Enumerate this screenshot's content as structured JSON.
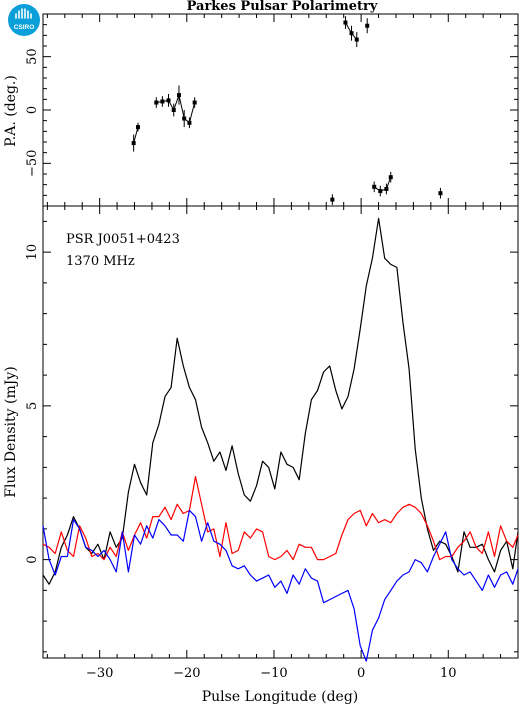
{
  "logo": {
    "text": "CSIRO",
    "icon": "csiro-logo-icon",
    "color": "#0a9fd8"
  },
  "chart_data": [
    {
      "type": "scatter",
      "title": "Parkes Pulsar Polarimetry",
      "ylabel": "P.A. (deg.)",
      "xlim": [
        -36.5,
        18
      ],
      "ylim": [
        -90,
        90
      ],
      "yticks": [
        -50,
        0,
        50
      ],
      "tick_labels_y": [
        "−50",
        "0",
        "50"
      ],
      "series": [
        {
          "points": [
            [
              -26.1,
              -31,
              8
            ],
            [
              -25.6,
              -16,
              4
            ],
            [
              -23.5,
              7,
              5
            ],
            [
              -22.8,
              8,
              5
            ],
            [
              -22.1,
              9,
              6
            ],
            [
              -21.5,
              0,
              6
            ],
            [
              -20.9,
              14,
              9
            ],
            [
              -20.3,
              -8,
              8
            ],
            [
              -19.7,
              -12,
              5
            ],
            [
              -19.1,
              7,
              5
            ],
            [
              -3.3,
              -84,
              5
            ],
            [
              -1.8,
              82,
              6
            ],
            [
              -1.1,
              72,
              7
            ],
            [
              -0.5,
              66,
              7
            ],
            [
              0.7,
              79,
              7
            ],
            [
              1.5,
              -72,
              5
            ],
            [
              2.2,
              -76,
              5
            ],
            [
              2.9,
              -74,
              5
            ],
            [
              3.4,
              -63,
              5
            ],
            [
              9.1,
              -78,
              5
            ]
          ]
        }
      ]
    },
    {
      "type": "line",
      "xlabel": "Pulse Longitude (deg)",
      "ylabel": "Flux Density (mJy)",
      "xlim": [
        -36.5,
        18
      ],
      "ylim": [
        -3.2,
        11.5
      ],
      "xticks": [
        -30,
        -20,
        -10,
        0,
        10
      ],
      "tick_labels_x": [
        "−30",
        "−20",
        "−10",
        "0",
        "10"
      ],
      "yticks": [
        0,
        5,
        10
      ],
      "tick_labels_y": [
        "0",
        "5",
        "10"
      ],
      "annotations": [
        "PSR J0051+0423",
        "1370 MHz"
      ],
      "series": [
        {
          "color": "#000000",
          "x": [
            -36.5,
            -35.8,
            -35.1,
            -34.4,
            -33.7,
            -33.0,
            -32.3,
            -31.6,
            -30.9,
            -30.2,
            -29.5,
            -28.8,
            -28.1,
            -27.4,
            -26.7,
            -26.0,
            -25.3,
            -24.6,
            -23.9,
            -23.2,
            -22.5,
            -21.8,
            -21.1,
            -20.4,
            -19.7,
            -19.0,
            -18.3,
            -17.6,
            -16.9,
            -16.2,
            -15.5,
            -14.8,
            -14.1,
            -13.4,
            -12.7,
            -12.0,
            -11.3,
            -10.6,
            -9.9,
            -9.2,
            -8.5,
            -7.8,
            -7.1,
            -6.4,
            -5.7,
            -5.0,
            -4.3,
            -3.6,
            -2.9,
            -2.2,
            -1.5,
            -0.8,
            -0.1,
            0.6,
            1.3,
            2.0,
            2.7,
            3.4,
            4.1,
            4.8,
            5.5,
            6.2,
            6.9,
            7.6,
            8.3,
            9.0,
            9.7,
            10.4,
            11.1,
            11.8,
            12.5,
            13.2,
            13.9,
            14.6,
            15.3,
            16.0,
            16.7,
            17.4,
            18.0
          ],
          "values": [
            -0.5,
            -0.8,
            -0.4,
            0.4,
            0.8,
            1.4,
            1.0,
            0.4,
            0.2,
            0.5,
            0.0,
            0.9,
            0.4,
            0.7,
            2.2,
            3.1,
            2.5,
            2.1,
            3.8,
            4.4,
            5.3,
            5.6,
            7.2,
            6.3,
            5.6,
            5.2,
            4.3,
            3.8,
            3.2,
            3.5,
            2.9,
            3.7,
            2.8,
            2.1,
            1.9,
            2.4,
            3.2,
            3.0,
            2.3,
            3.5,
            3.1,
            3.0,
            2.6,
            4.1,
            5.2,
            5.5,
            6.1,
            6.3,
            5.5,
            4.9,
            5.3,
            6.2,
            7.5,
            8.9,
            9.8,
            11.1,
            9.8,
            9.6,
            9.5,
            7.7,
            6.2,
            3.6,
            2.0,
            1.0,
            0.3,
            0.6,
            0.5,
            0.1,
            -0.4,
            0.9,
            0.4,
            0.4,
            0.5,
            0.0,
            -0.4,
            0.3,
            0.6,
            -0.3,
            0.9
          ]
        },
        {
          "color": "#ff0000",
          "x": [
            -36.5,
            -35.8,
            -35.1,
            -34.4,
            -33.7,
            -33.0,
            -32.3,
            -31.6,
            -30.9,
            -30.2,
            -29.5,
            -28.8,
            -28.1,
            -27.4,
            -26.7,
            -26.0,
            -25.3,
            -24.6,
            -23.9,
            -23.2,
            -22.5,
            -21.8,
            -21.1,
            -20.4,
            -19.7,
            -19.0,
            -18.3,
            -17.6,
            -16.9,
            -16.2,
            -15.5,
            -14.8,
            -14.1,
            -13.4,
            -12.7,
            -12.0,
            -11.3,
            -10.6,
            -9.9,
            -9.2,
            -8.5,
            -7.8,
            -7.1,
            -6.4,
            -5.7,
            -5.0,
            -4.3,
            -3.6,
            -2.9,
            -2.2,
            -1.5,
            -0.8,
            -0.1,
            0.6,
            1.3,
            2.0,
            2.7,
            3.4,
            4.1,
            4.8,
            5.5,
            6.2,
            6.9,
            7.6,
            8.3,
            9.0,
            9.7,
            10.4,
            11.1,
            11.8,
            12.5,
            13.2,
            13.9,
            14.6,
            15.3,
            16.0,
            16.7,
            17.4,
            18.0
          ],
          "values": [
            0.5,
            0.4,
            0.2,
            0.9,
            0.3,
            0.1,
            1.1,
            0.7,
            0.1,
            0.2,
            0.0,
            0.4,
            0.1,
            0.9,
            0.3,
            0.8,
            1.2,
            0.7,
            1.4,
            1.4,
            1.7,
            1.3,
            1.8,
            1.5,
            1.6,
            2.7,
            1.8,
            0.9,
            1.0,
            0.1,
            1.2,
            0.2,
            0.3,
            0.9,
            0.7,
            1.0,
            0.9,
            0.1,
            0.0,
            0.1,
            0.3,
            0.0,
            0.5,
            0.4,
            0.4,
            0.0,
            0.0,
            0.1,
            0.2,
            0.8,
            1.3,
            1.5,
            1.6,
            1.1,
            1.5,
            1.2,
            1.3,
            1.2,
            1.5,
            1.7,
            1.8,
            1.7,
            1.5,
            1.1,
            0.6,
            0.0,
            0.1,
            0.1,
            0.4,
            0.6,
            0.9,
            0.4,
            0.2,
            0.9,
            0.1,
            1.1,
            0.6,
            0.4,
            0.8
          ]
        },
        {
          "color": "#0000ff",
          "x": [
            -36.5,
            -35.8,
            -35.1,
            -34.4,
            -33.7,
            -33.0,
            -32.3,
            -31.6,
            -30.9,
            -30.2,
            -29.5,
            -28.8,
            -28.1,
            -27.4,
            -26.7,
            -26.0,
            -25.3,
            -24.6,
            -23.9,
            -23.2,
            -22.5,
            -21.8,
            -21.1,
            -20.4,
            -19.7,
            -19.0,
            -18.3,
            -17.6,
            -16.9,
            -16.2,
            -15.5,
            -14.8,
            -14.1,
            -13.4,
            -12.7,
            -12.0,
            -11.3,
            -10.6,
            -9.9,
            -9.2,
            -8.5,
            -7.8,
            -7.1,
            -6.4,
            -5.7,
            -5.0,
            -4.3,
            -3.6,
            -2.9,
            -2.2,
            -1.5,
            -0.8,
            -0.1,
            0.6,
            1.3,
            2.0,
            2.7,
            3.4,
            4.1,
            4.8,
            5.5,
            6.2,
            6.9,
            7.6,
            8.3,
            9.0,
            9.7,
            10.4,
            11.1,
            11.8,
            12.5,
            13.2,
            13.9,
            14.6,
            15.3,
            16.0,
            16.7,
            17.4,
            18.0
          ],
          "values": [
            1.1,
            0.0,
            -0.5,
            0.1,
            0.1,
            1.3,
            1.0,
            0.4,
            0.3,
            0.1,
            0.3,
            0.0,
            -0.4,
            0.9,
            -0.4,
            0.8,
            0.5,
            1.1,
            0.7,
            1.3,
            1.1,
            0.8,
            0.8,
            0.6,
            1.6,
            1.4,
            0.6,
            1.2,
            0.6,
            0.5,
            0.3,
            -0.2,
            -0.3,
            -0.2,
            -0.5,
            -0.7,
            -0.6,
            -0.5,
            -0.9,
            -0.7,
            -1.1,
            -0.5,
            -0.8,
            -0.3,
            -0.6,
            -0.7,
            -1.4,
            -1.3,
            -1.2,
            -1.1,
            -1.0,
            -1.6,
            -2.8,
            -3.3,
            -2.3,
            -1.9,
            -1.3,
            -1.0,
            -0.7,
            -0.5,
            -0.4,
            0.0,
            -0.1,
            -0.4,
            0.1,
            0.5,
            0.9,
            0.0,
            -0.3,
            -0.5,
            -0.4,
            -0.7,
            -1.0,
            -0.5,
            -0.9,
            -0.5,
            -0.4,
            -0.8,
            -0.3
          ]
        }
      ]
    }
  ]
}
